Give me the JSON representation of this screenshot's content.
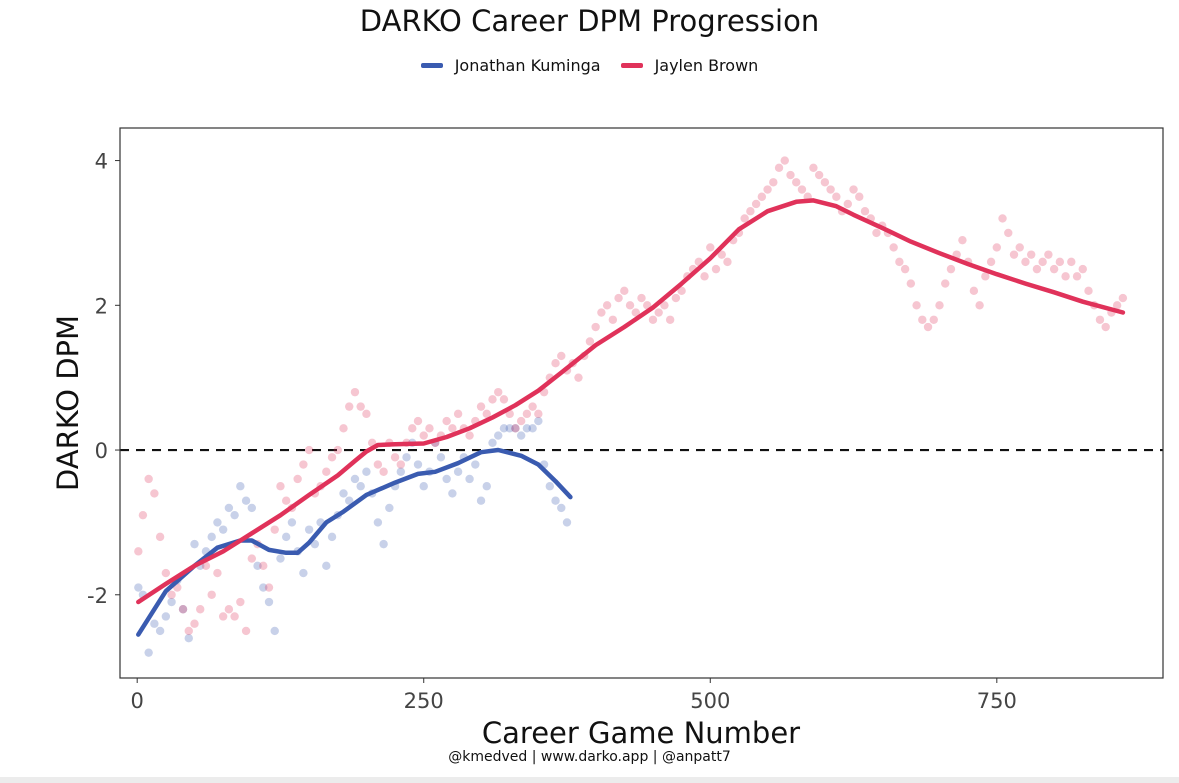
{
  "chart_data": {
    "type": "scatter",
    "title": "DARKO Career DPM Progression",
    "xlabel": "Career Game Number",
    "ylabel": "DARKO DPM",
    "xlim": [
      -15,
      895
    ],
    "ylim": [
      -3.15,
      4.45
    ],
    "x_ticks": [
      0,
      250,
      500,
      750
    ],
    "x_tick_labels": [
      "0",
      "250",
      "500",
      "750"
    ],
    "y_ticks": [
      -2,
      0,
      2,
      4
    ],
    "y_tick_labels": [
      "-2",
      "0",
      "2",
      "4"
    ],
    "reference_line": {
      "y": 0,
      "style": "dashed"
    },
    "grid": false,
    "legend_position": "top",
    "caption": "@kmedved | www.darko.app | @anpatt7",
    "series": [
      {
        "name": "Jonathan Kuminga",
        "color": "#3a5bb0",
        "points": [
          [
            1,
            -1.9
          ],
          [
            5,
            -2.0
          ],
          [
            10,
            -2.8
          ],
          [
            15,
            -2.4
          ],
          [
            20,
            -2.5
          ],
          [
            25,
            -2.3
          ],
          [
            30,
            -2.1
          ],
          [
            35,
            -1.8
          ],
          [
            40,
            -2.2
          ],
          [
            45,
            -2.6
          ],
          [
            50,
            -1.3
          ],
          [
            55,
            -1.6
          ],
          [
            60,
            -1.4
          ],
          [
            65,
            -1.2
          ],
          [
            70,
            -1.0
          ],
          [
            75,
            -1.1
          ],
          [
            80,
            -0.8
          ],
          [
            85,
            -0.9
          ],
          [
            90,
            -0.5
          ],
          [
            95,
            -0.7
          ],
          [
            100,
            -0.8
          ],
          [
            105,
            -1.6
          ],
          [
            110,
            -1.9
          ],
          [
            115,
            -2.1
          ],
          [
            120,
            -2.5
          ],
          [
            125,
            -1.5
          ],
          [
            130,
            -1.2
          ],
          [
            135,
            -1.0
          ],
          [
            140,
            -1.4
          ],
          [
            145,
            -1.7
          ],
          [
            150,
            -1.1
          ],
          [
            155,
            -1.3
          ],
          [
            160,
            -1.0
          ],
          [
            165,
            -1.6
          ],
          [
            170,
            -1.2
          ],
          [
            175,
            -0.9
          ],
          [
            180,
            -0.6
          ],
          [
            185,
            -0.7
          ],
          [
            190,
            -0.4
          ],
          [
            195,
            -0.5
          ],
          [
            200,
            -0.3
          ],
          [
            205,
            -0.6
          ],
          [
            210,
            -1.0
          ],
          [
            215,
            -1.3
          ],
          [
            220,
            -0.8
          ],
          [
            225,
            -0.5
          ],
          [
            230,
            -0.3
          ],
          [
            235,
            -0.1
          ],
          [
            240,
            0.1
          ],
          [
            245,
            -0.2
          ],
          [
            250,
            -0.5
          ],
          [
            255,
            -0.3
          ],
          [
            260,
            0.1
          ],
          [
            265,
            -0.1
          ],
          [
            270,
            -0.4
          ],
          [
            275,
            -0.6
          ],
          [
            280,
            -0.3
          ],
          [
            285,
            -0.1
          ],
          [
            290,
            -0.4
          ],
          [
            295,
            -0.2
          ],
          [
            300,
            -0.7
          ],
          [
            305,
            -0.5
          ],
          [
            310,
            0.1
          ],
          [
            315,
            0.2
          ],
          [
            320,
            0.3
          ],
          [
            325,
            0.3
          ],
          [
            330,
            0.3
          ],
          [
            335,
            0.2
          ],
          [
            340,
            0.3
          ],
          [
            345,
            0.3
          ],
          [
            350,
            0.4
          ],
          [
            355,
            -0.2
          ],
          [
            360,
            -0.5
          ],
          [
            365,
            -0.7
          ],
          [
            370,
            -0.8
          ],
          [
            375,
            -1.0
          ]
        ],
        "trend": [
          [
            1,
            -2.55
          ],
          [
            25,
            -1.95
          ],
          [
            50,
            -1.6
          ],
          [
            70,
            -1.35
          ],
          [
            90,
            -1.25
          ],
          [
            100,
            -1.25
          ],
          [
            115,
            -1.38
          ],
          [
            130,
            -1.42
          ],
          [
            140,
            -1.42
          ],
          [
            150,
            -1.28
          ],
          [
            165,
            -1.0
          ],
          [
            180,
            -0.85
          ],
          [
            200,
            -0.62
          ],
          [
            225,
            -0.45
          ],
          [
            245,
            -0.33
          ],
          [
            260,
            -0.3
          ],
          [
            280,
            -0.18
          ],
          [
            300,
            -0.03
          ],
          [
            315,
            0.0
          ],
          [
            335,
            -0.08
          ],
          [
            350,
            -0.2
          ],
          [
            365,
            -0.43
          ],
          [
            378,
            -0.65
          ]
        ]
      },
      {
        "name": "Jaylen Brown",
        "color": "#e0325a",
        "points": [
          [
            1,
            -1.4
          ],
          [
            5,
            -0.9
          ],
          [
            10,
            -0.4
          ],
          [
            15,
            -0.6
          ],
          [
            20,
            -1.2
          ],
          [
            25,
            -1.7
          ],
          [
            30,
            -2.0
          ],
          [
            35,
            -1.9
          ],
          [
            40,
            -2.2
          ],
          [
            45,
            -2.5
          ],
          [
            50,
            -2.4
          ],
          [
            55,
            -2.2
          ],
          [
            60,
            -1.6
          ],
          [
            65,
            -2.0
          ],
          [
            70,
            -1.7
          ],
          [
            75,
            -2.3
          ],
          [
            80,
            -2.2
          ],
          [
            85,
            -2.3
          ],
          [
            90,
            -2.1
          ],
          [
            95,
            -2.5
          ],
          [
            100,
            -1.5
          ],
          [
            105,
            -1.3
          ],
          [
            110,
            -1.6
          ],
          [
            115,
            -1.9
          ],
          [
            120,
            -1.1
          ],
          [
            125,
            -0.5
          ],
          [
            130,
            -0.7
          ],
          [
            135,
            -0.8
          ],
          [
            140,
            -0.4
          ],
          [
            145,
            -0.2
          ],
          [
            150,
            0.0
          ],
          [
            155,
            -0.6
          ],
          [
            160,
            -0.5
          ],
          [
            165,
            -0.3
          ],
          [
            170,
            -0.1
          ],
          [
            175,
            0.0
          ],
          [
            180,
            0.3
          ],
          [
            185,
            0.6
          ],
          [
            190,
            0.8
          ],
          [
            195,
            0.6
          ],
          [
            200,
            0.5
          ],
          [
            205,
            0.1
          ],
          [
            210,
            -0.2
          ],
          [
            215,
            -0.3
          ],
          [
            220,
            0.1
          ],
          [
            225,
            -0.1
          ],
          [
            230,
            -0.2
          ],
          [
            235,
            0.1
          ],
          [
            240,
            0.3
          ],
          [
            245,
            0.4
          ],
          [
            250,
            0.2
          ],
          [
            255,
            0.3
          ],
          [
            260,
            0.1
          ],
          [
            265,
            0.2
          ],
          [
            270,
            0.4
          ],
          [
            275,
            0.3
          ],
          [
            280,
            0.5
          ],
          [
            285,
            0.3
          ],
          [
            290,
            0.2
          ],
          [
            295,
            0.4
          ],
          [
            300,
            0.6
          ],
          [
            305,
            0.5
          ],
          [
            310,
            0.7
          ],
          [
            315,
            0.8
          ],
          [
            320,
            0.7
          ],
          [
            325,
            0.5
          ],
          [
            330,
            0.3
          ],
          [
            335,
            0.4
          ],
          [
            340,
            0.5
          ],
          [
            345,
            0.6
          ],
          [
            350,
            0.5
          ],
          [
            355,
            0.8
          ],
          [
            360,
            1.0
          ],
          [
            365,
            1.2
          ],
          [
            370,
            1.3
          ],
          [
            375,
            1.1
          ],
          [
            380,
            1.2
          ],
          [
            385,
            1.0
          ],
          [
            390,
            1.3
          ],
          [
            395,
            1.5
          ],
          [
            400,
            1.7
          ],
          [
            405,
            1.9
          ],
          [
            410,
            2.0
          ],
          [
            415,
            1.8
          ],
          [
            420,
            2.1
          ],
          [
            425,
            2.2
          ],
          [
            430,
            2.0
          ],
          [
            435,
            1.9
          ],
          [
            440,
            2.1
          ],
          [
            445,
            2.0
          ],
          [
            450,
            1.8
          ],
          [
            455,
            1.9
          ],
          [
            460,
            2.0
          ],
          [
            465,
            1.8
          ],
          [
            470,
            2.1
          ],
          [
            475,
            2.2
          ],
          [
            480,
            2.4
          ],
          [
            485,
            2.5
          ],
          [
            490,
            2.6
          ],
          [
            495,
            2.4
          ],
          [
            500,
            2.8
          ],
          [
            505,
            2.5
          ],
          [
            510,
            2.7
          ],
          [
            515,
            2.6
          ],
          [
            520,
            2.9
          ],
          [
            525,
            3.0
          ],
          [
            530,
            3.2
          ],
          [
            535,
            3.3
          ],
          [
            540,
            3.4
          ],
          [
            545,
            3.5
          ],
          [
            550,
            3.6
          ],
          [
            555,
            3.7
          ],
          [
            560,
            3.9
          ],
          [
            565,
            4.0
          ],
          [
            570,
            3.8
          ],
          [
            575,
            3.7
          ],
          [
            580,
            3.6
          ],
          [
            585,
            3.5
          ],
          [
            590,
            3.9
          ],
          [
            595,
            3.8
          ],
          [
            600,
            3.7
          ],
          [
            605,
            3.6
          ],
          [
            610,
            3.5
          ],
          [
            615,
            3.3
          ],
          [
            620,
            3.4
          ],
          [
            625,
            3.6
          ],
          [
            630,
            3.5
          ],
          [
            635,
            3.3
          ],
          [
            640,
            3.2
          ],
          [
            645,
            3.0
          ],
          [
            650,
            3.1
          ],
          [
            655,
            3.0
          ],
          [
            660,
            2.8
          ],
          [
            665,
            2.6
          ],
          [
            670,
            2.5
          ],
          [
            675,
            2.3
          ],
          [
            680,
            2.0
          ],
          [
            685,
            1.8
          ],
          [
            690,
            1.7
          ],
          [
            695,
            1.8
          ],
          [
            700,
            2.0
          ],
          [
            705,
            2.3
          ],
          [
            710,
            2.5
          ],
          [
            715,
            2.7
          ],
          [
            720,
            2.9
          ],
          [
            725,
            2.6
          ],
          [
            730,
            2.2
          ],
          [
            735,
            2.0
          ],
          [
            740,
            2.4
          ],
          [
            745,
            2.6
          ],
          [
            750,
            2.8
          ],
          [
            755,
            3.2
          ],
          [
            760,
            3.0
          ],
          [
            765,
            2.7
          ],
          [
            770,
            2.8
          ],
          [
            775,
            2.6
          ],
          [
            780,
            2.7
          ],
          [
            785,
            2.5
          ],
          [
            790,
            2.6
          ],
          [
            795,
            2.7
          ],
          [
            800,
            2.5
          ],
          [
            805,
            2.6
          ],
          [
            810,
            2.4
          ],
          [
            815,
            2.6
          ],
          [
            820,
            2.4
          ],
          [
            825,
            2.5
          ],
          [
            830,
            2.2
          ],
          [
            835,
            2.0
          ],
          [
            840,
            1.8
          ],
          [
            845,
            1.7
          ],
          [
            850,
            1.9
          ],
          [
            855,
            2.0
          ],
          [
            860,
            2.1
          ]
        ],
        "trend": [
          [
            1,
            -2.1
          ],
          [
            25,
            -1.85
          ],
          [
            50,
            -1.6
          ],
          [
            75,
            -1.4
          ],
          [
            100,
            -1.15
          ],
          [
            125,
            -0.9
          ],
          [
            150,
            -0.62
          ],
          [
            175,
            -0.35
          ],
          [
            190,
            -0.15
          ],
          [
            200,
            -0.02
          ],
          [
            210,
            0.07
          ],
          [
            225,
            0.08
          ],
          [
            250,
            0.09
          ],
          [
            270,
            0.18
          ],
          [
            290,
            0.3
          ],
          [
            310,
            0.45
          ],
          [
            330,
            0.62
          ],
          [
            350,
            0.82
          ],
          [
            370,
            1.07
          ],
          [
            400,
            1.45
          ],
          [
            425,
            1.7
          ],
          [
            450,
            1.97
          ],
          [
            475,
            2.3
          ],
          [
            500,
            2.65
          ],
          [
            525,
            3.05
          ],
          [
            550,
            3.3
          ],
          [
            575,
            3.43
          ],
          [
            590,
            3.45
          ],
          [
            610,
            3.37
          ],
          [
            625,
            3.25
          ],
          [
            650,
            3.07
          ],
          [
            675,
            2.88
          ],
          [
            700,
            2.72
          ],
          [
            725,
            2.57
          ],
          [
            750,
            2.43
          ],
          [
            775,
            2.3
          ],
          [
            800,
            2.18
          ],
          [
            825,
            2.05
          ],
          [
            860,
            1.9
          ]
        ]
      }
    ]
  }
}
